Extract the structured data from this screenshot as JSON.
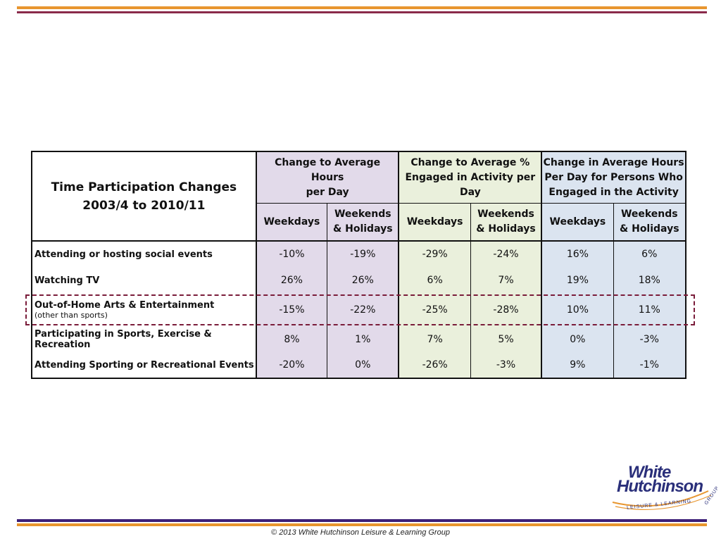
{
  "table": {
    "title_line1": "Time Participation Changes",
    "title_line2": "2003/4 to 2010/11",
    "groups": [
      {
        "line1": "Change to Average Hours",
        "line2": "per Day",
        "line3": "",
        "color": "#e2daea"
      },
      {
        "line1": "Change to Average %",
        "line2": "Engaged in Activity per Day",
        "line3": "",
        "color": "#eaf0dc"
      },
      {
        "line1": "Change in Average Hours",
        "line2": "Per Day for Persons Who",
        "line3": "Engaged in the Activity",
        "color": "#dbe4f0"
      }
    ],
    "sub_headers": {
      "weekdays": "Weekdays",
      "weekends_line1": "Weekends",
      "weekends_line2": "& Holidays"
    },
    "rows": [
      {
        "label": "Attending or hosting social events",
        "note": "",
        "values": [
          "-10%",
          "-19%",
          "-29%",
          "-24%",
          "16%",
          "6%"
        ]
      },
      {
        "label": "Watching TV",
        "note": "",
        "values": [
          "26%",
          "26%",
          "6%",
          "7%",
          "19%",
          "18%"
        ]
      },
      {
        "label": "Out-of-Home Arts & Entertainment",
        "note": "(other than sports)",
        "values": [
          "-15%",
          "-22%",
          "-25%",
          "-28%",
          "10%",
          "11%"
        ]
      },
      {
        "label": "Participating in Sports, Exercise & Recreation",
        "note": "",
        "values": [
          "8%",
          "1%",
          "7%",
          "5%",
          "0%",
          "-3%"
        ]
      },
      {
        "label": "Attending Sporting or Recreational Events",
        "note": "",
        "values": [
          "-20%",
          "0%",
          "-26%",
          "-3%",
          "9%",
          "-1%"
        ]
      }
    ],
    "highlight_color": "#7a1c3a"
  },
  "logo": {
    "word1": "White",
    "word2": "Hutchinson",
    "tagline_part1": "LEISURE & LEARNING",
    "tagline_part2": "GROUP"
  },
  "footer": {
    "copyright": "© 2013 White Hutchinson Leisure & Learning Group"
  },
  "colors": {
    "accent_orange": "#e8962f",
    "accent_plum": "#8a2a4a",
    "accent_indigo": "#3c1f78"
  }
}
